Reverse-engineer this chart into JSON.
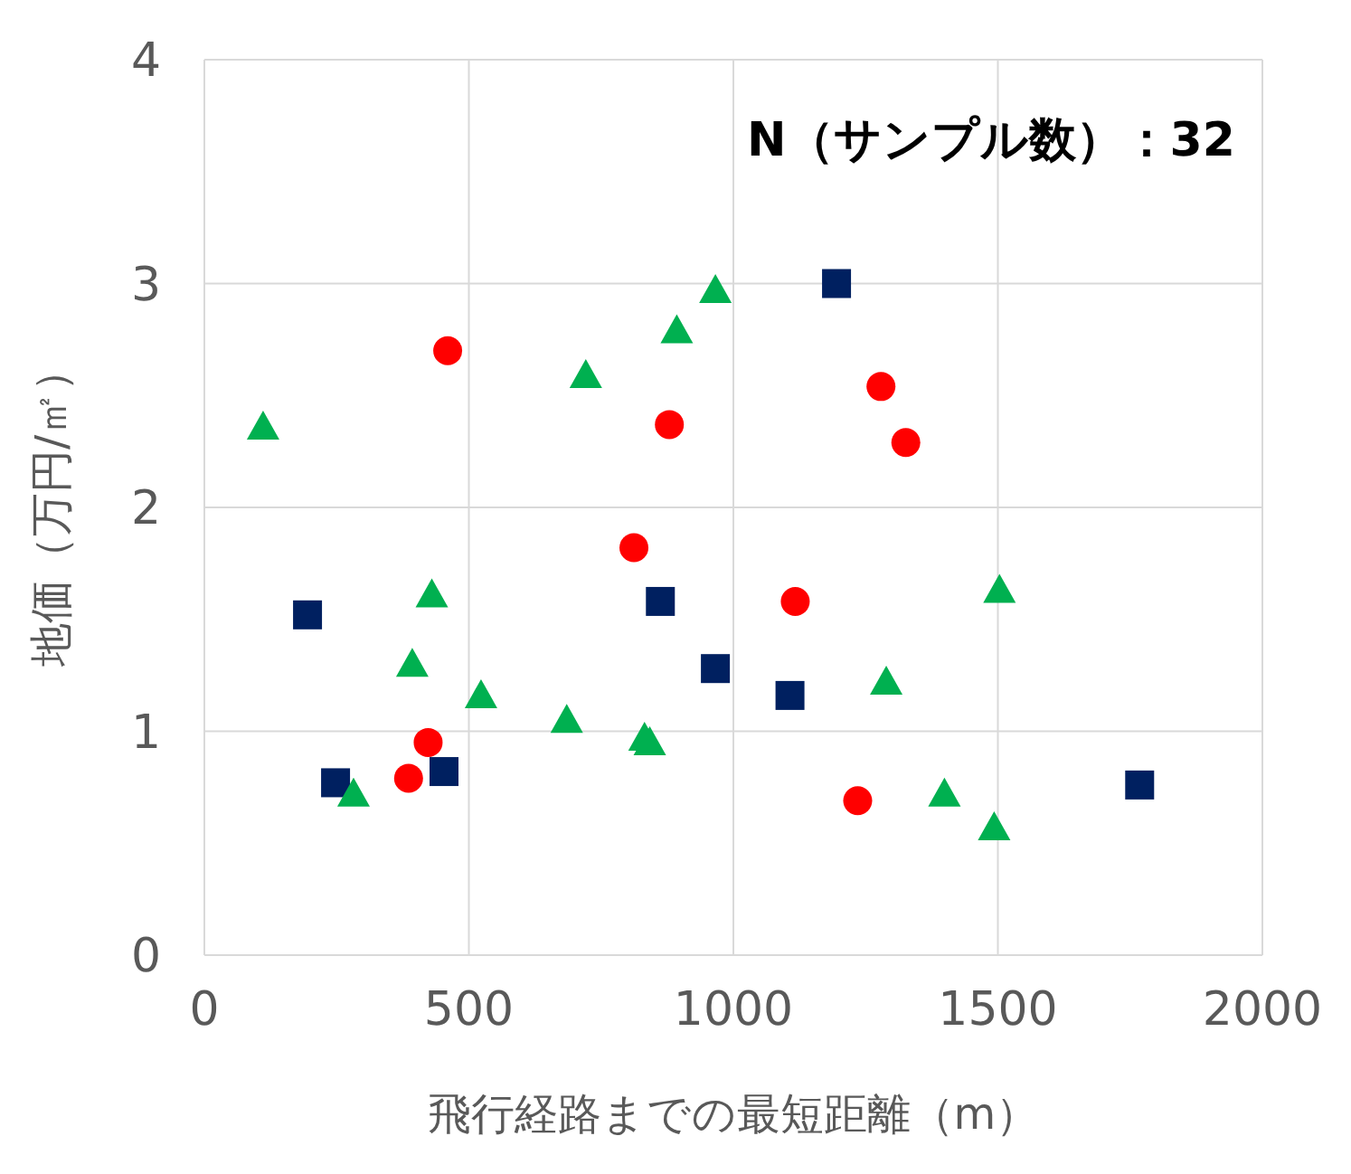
{
  "chart_data": {
    "type": "scatter",
    "xlabel": "飛行経路までの最短距離（m）",
    "ylabel": "地価（万円/㎡）",
    "annotations": [
      "N（サンプル数）：32"
    ],
    "xlim": [
      0,
      2000
    ],
    "xticks": [
      0,
      500,
      1000,
      1500,
      2000
    ],
    "ylim": [
      0,
      4
    ],
    "yticks": [
      0,
      1,
      2,
      3,
      4
    ],
    "grid": true,
    "legend": false,
    "series": [
      {
        "color": "#ff0000",
        "marker": "circle",
        "x": [
          460,
          879,
          1279,
          1326,
          812,
          1117,
          423,
          386,
          1235
        ],
        "values": [
          2.7,
          2.37,
          2.54,
          2.29,
          1.82,
          1.58,
          0.95,
          0.79,
          0.69
        ]
      },
      {
        "color": "#002060",
        "marker": "square",
        "x": [
          1195,
          195,
          862,
          966,
          1107,
          248,
          453,
          1768
        ],
        "values": [
          3.0,
          1.52,
          1.58,
          1.28,
          1.16,
          0.77,
          0.82,
          0.76
        ]
      },
      {
        "color": "#00b050",
        "marker": "triangle",
        "x": [
          111,
          966,
          893,
          721,
          430,
          1503,
          393,
          523,
          685,
          832,
          842,
          1289,
          282,
          1399,
          1493
        ],
        "values": [
          2.36,
          2.97,
          2.79,
          2.59,
          1.61,
          1.63,
          1.3,
          1.16,
          1.05,
          0.97,
          0.95,
          1.22,
          0.72,
          0.72,
          0.57
        ]
      }
    ]
  }
}
